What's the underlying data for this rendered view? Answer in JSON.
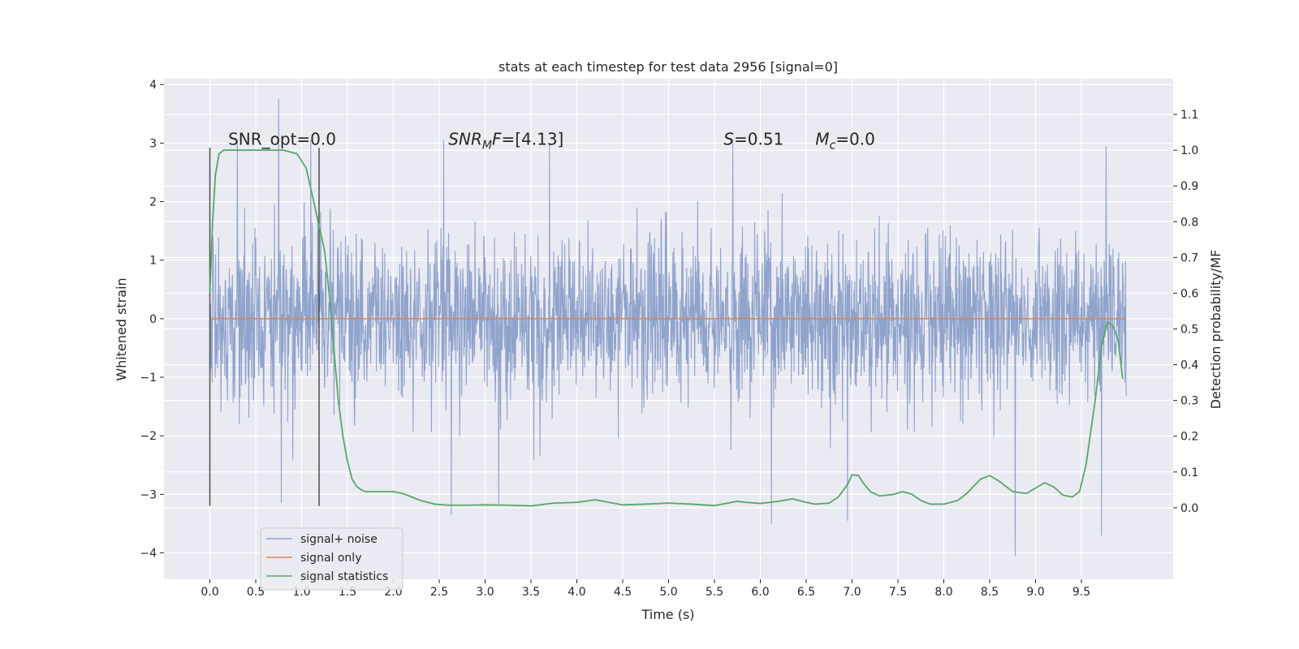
{
  "chart_data": {
    "type": "line",
    "title": "stats at each timestep for test data 2956 [signal=0]",
    "xlabel": "Time (s)",
    "ylabel": "Whitened strain",
    "y2label": "Detection probability/MF",
    "xlim": [
      -0.5,
      10.5
    ],
    "ylim": [
      -4.45,
      4.1
    ],
    "y2lim": [
      -0.2,
      1.2
    ],
    "x_ticks": [
      0.0,
      0.5,
      1.0,
      1.5,
      2.0,
      2.5,
      3.0,
      3.5,
      4.0,
      4.5,
      5.0,
      5.5,
      6.0,
      6.5,
      7.0,
      7.5,
      8.0,
      8.5,
      9.0,
      9.5
    ],
    "x_tick_labels": [
      "0.0",
      "0.5",
      "1.0",
      "1.5",
      "2.0",
      "2.5",
      "3.0",
      "3.5",
      "4.0",
      "4.5",
      "5.0",
      "5.5",
      "6.0",
      "6.5",
      "7.0",
      "7.5",
      "8.0",
      "8.5",
      "9.0",
      "9.5"
    ],
    "y_ticks": [
      -4,
      -3,
      -2,
      -1,
      0,
      1,
      2,
      3,
      4
    ],
    "y_tick_labels": [
      "−4",
      "−3",
      "−2",
      "−1",
      "0",
      "1",
      "2",
      "3",
      "4"
    ],
    "y2_ticks": [
      0.0,
      0.1,
      0.2,
      0.3,
      0.4,
      0.5,
      0.6,
      0.7,
      0.8,
      0.9,
      1.0,
      1.1
    ],
    "y2_tick_labels": [
      "0.0",
      "0.1",
      "0.2",
      "0.3",
      "0.4",
      "0.5",
      "0.6",
      "0.7",
      "0.8",
      "0.9",
      "1.0",
      "1.1"
    ],
    "grid": true,
    "legend_position": "lower-left",
    "colors": {
      "noise": "#8fa3cc",
      "signal": "#dd8452",
      "stats": "#55a868",
      "background": "#eaeaf2",
      "vline": "#4d4d4d"
    },
    "series": [
      {
        "name": "signal+ noise",
        "axis": "left",
        "x_range": [
          0.0,
          9.99
        ],
        "band": {
          "typical_low": -1.5,
          "typical_high": 1.5,
          "extreme_low": -4.05,
          "extreme_high": 3.75
        },
        "notable_peaks": [
          {
            "x": 0.75,
            "y": 3.75
          },
          {
            "x": 0.3,
            "y": 3.0
          },
          {
            "x": 1.1,
            "y": 3.05
          },
          {
            "x": 2.55,
            "y": 3.05
          },
          {
            "x": 3.7,
            "y": 3.0
          },
          {
            "x": 5.7,
            "y": 3.05
          },
          {
            "x": 9.77,
            "y": 2.95
          },
          {
            "x": 2.63,
            "y": -3.35
          },
          {
            "x": 6.12,
            "y": -3.5
          },
          {
            "x": 6.95,
            "y": -3.45
          },
          {
            "x": 8.78,
            "y": -4.05
          },
          {
            "x": 9.72,
            "y": -3.7
          },
          {
            "x": 0.78,
            "y": -3.15
          },
          {
            "x": 3.15,
            "y": -3.2
          }
        ]
      },
      {
        "name": "signal only",
        "axis": "left",
        "x": [
          0.0,
          9.99
        ],
        "y": [
          0.0,
          0.0
        ]
      },
      {
        "name": "signal statistics",
        "axis": "right",
        "x": [
          0.0,
          0.03,
          0.06,
          0.1,
          0.15,
          0.22,
          0.3,
          0.45,
          0.6,
          0.8,
          0.95,
          1.05,
          1.12,
          1.18,
          1.25,
          1.3,
          1.35,
          1.4,
          1.45,
          1.5,
          1.55,
          1.6,
          1.65,
          1.7,
          1.8,
          1.9,
          2.0,
          2.1,
          2.2,
          2.3,
          2.45,
          2.6,
          2.8,
          3.0,
          3.25,
          3.5,
          3.75,
          4.0,
          4.2,
          4.35,
          4.5,
          4.75,
          5.0,
          5.25,
          5.5,
          5.75,
          5.85,
          6.0,
          6.1,
          6.2,
          6.35,
          6.5,
          6.6,
          6.75,
          6.85,
          6.95,
          7.0,
          7.07,
          7.12,
          7.2,
          7.3,
          7.45,
          7.55,
          7.65,
          7.75,
          7.85,
          8.0,
          8.15,
          8.25,
          8.4,
          8.5,
          8.6,
          8.75,
          8.9,
          9.0,
          9.1,
          9.2,
          9.3,
          9.4,
          9.48,
          9.55,
          9.65,
          9.72,
          9.78,
          9.84,
          9.9,
          9.95
        ],
        "y": [
          0.6,
          0.8,
          0.93,
          0.99,
          1.0,
          1.0,
          1.0,
          1.0,
          1.0,
          1.0,
          0.99,
          0.95,
          0.87,
          0.8,
          0.72,
          0.6,
          0.45,
          0.3,
          0.2,
          0.13,
          0.08,
          0.06,
          0.05,
          0.045,
          0.045,
          0.045,
          0.045,
          0.04,
          0.03,
          0.02,
          0.01,
          0.007,
          0.007,
          0.008,
          0.007,
          0.005,
          0.013,
          0.015,
          0.022,
          0.015,
          0.008,
          0.01,
          0.013,
          0.01,
          0.006,
          0.018,
          0.015,
          0.012,
          0.015,
          0.018,
          0.025,
          0.015,
          0.01,
          0.013,
          0.03,
          0.065,
          0.092,
          0.09,
          0.07,
          0.045,
          0.033,
          0.037,
          0.045,
          0.038,
          0.02,
          0.01,
          0.01,
          0.02,
          0.04,
          0.08,
          0.09,
          0.075,
          0.045,
          0.04,
          0.055,
          0.07,
          0.058,
          0.035,
          0.03,
          0.045,
          0.12,
          0.3,
          0.45,
          0.52,
          0.51,
          0.47,
          0.36
        ]
      }
    ],
    "vertical_lines": [
      {
        "x": 0.0,
        "y_from": -3.2,
        "y_to": 2.92
      },
      {
        "x": 1.19,
        "y_from": -3.2,
        "y_to": 2.92
      }
    ],
    "annotations": [
      {
        "segments": [
          {
            "text": "SNR_opt=0.0",
            "style": "normal"
          }
        ],
        "x": 0.2,
        "y": 2.97
      },
      {
        "segments": [
          {
            "text": "SNR",
            "style": "italic"
          },
          {
            "text": "M",
            "style": "italic-sub"
          },
          {
            "text": "F",
            "style": "italic"
          },
          {
            "text": "=[4.13]",
            "style": "normal"
          }
        ],
        "x": 2.6,
        "y": 2.97
      },
      {
        "segments": [
          {
            "text": "S",
            "style": "italic"
          },
          {
            "text": "=0.51",
            "style": "normal"
          }
        ],
        "x": 5.6,
        "y": 2.97
      },
      {
        "segments": [
          {
            "text": "M",
            "style": "italic"
          },
          {
            "text": "c",
            "style": "italic-sub"
          },
          {
            "text": "=0.0",
            "style": "normal"
          }
        ],
        "x": 6.6,
        "y": 2.97
      }
    ]
  }
}
